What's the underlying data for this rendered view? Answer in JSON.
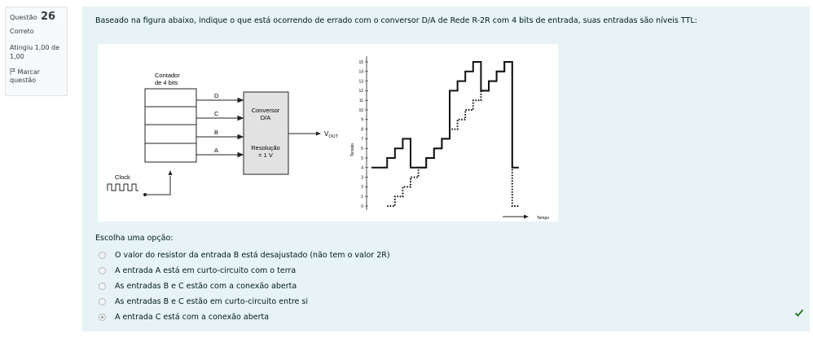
{
  "info": {
    "question_label": "Questão",
    "question_number": "26",
    "state": "Correto",
    "grade": "Atingiu 1,00 de 1,00",
    "flag_label": "Marcar questão"
  },
  "question": {
    "text": "Baseado na figura abaixo, indique o que está ocorrendo de errado com o conversor D/A de Rede R-2R com 4 bits de entrada, suas entradas são níveis TTL:"
  },
  "figure": {
    "counter_label_1": "Contador",
    "counter_label_2": "de 4 bits",
    "clock_label": "Clock",
    "bit_labels": [
      "D",
      "C",
      "B",
      "A"
    ],
    "converter_label_1": "Conversor",
    "converter_label_2": "D/A",
    "resolution_label_1": "Resolução",
    "resolution_label_2": "= 1 V",
    "vout_label": "V",
    "vout_sub": "OUT",
    "y_axis_label": "Tensão",
    "x_axis_label": "Tempo",
    "y_ticks": [
      "0",
      "1",
      "2",
      "3",
      "4",
      "5",
      "6",
      "7",
      "8",
      "9",
      "10",
      "11",
      "12",
      "13",
      "14",
      "15"
    ]
  },
  "prompt": "Escolha uma opção:",
  "options": [
    {
      "label": "O valor do resistor da entrada B está desajustado (não tem o valor 2R)",
      "checked": false
    },
    {
      "label": "A entrada A está em curto-circuito com o terra",
      "checked": false
    },
    {
      "label": "As entradas B e C estão com a conexão aberta",
      "checked": false
    },
    {
      "label": "As entradas B e C estão em curto-circuito entre si",
      "checked": false
    },
    {
      "label": "A entrada C está com a conexão aberta",
      "checked": true
    }
  ],
  "colors": {
    "panel": "#e7f3f5",
    "correct": "#357a32"
  }
}
